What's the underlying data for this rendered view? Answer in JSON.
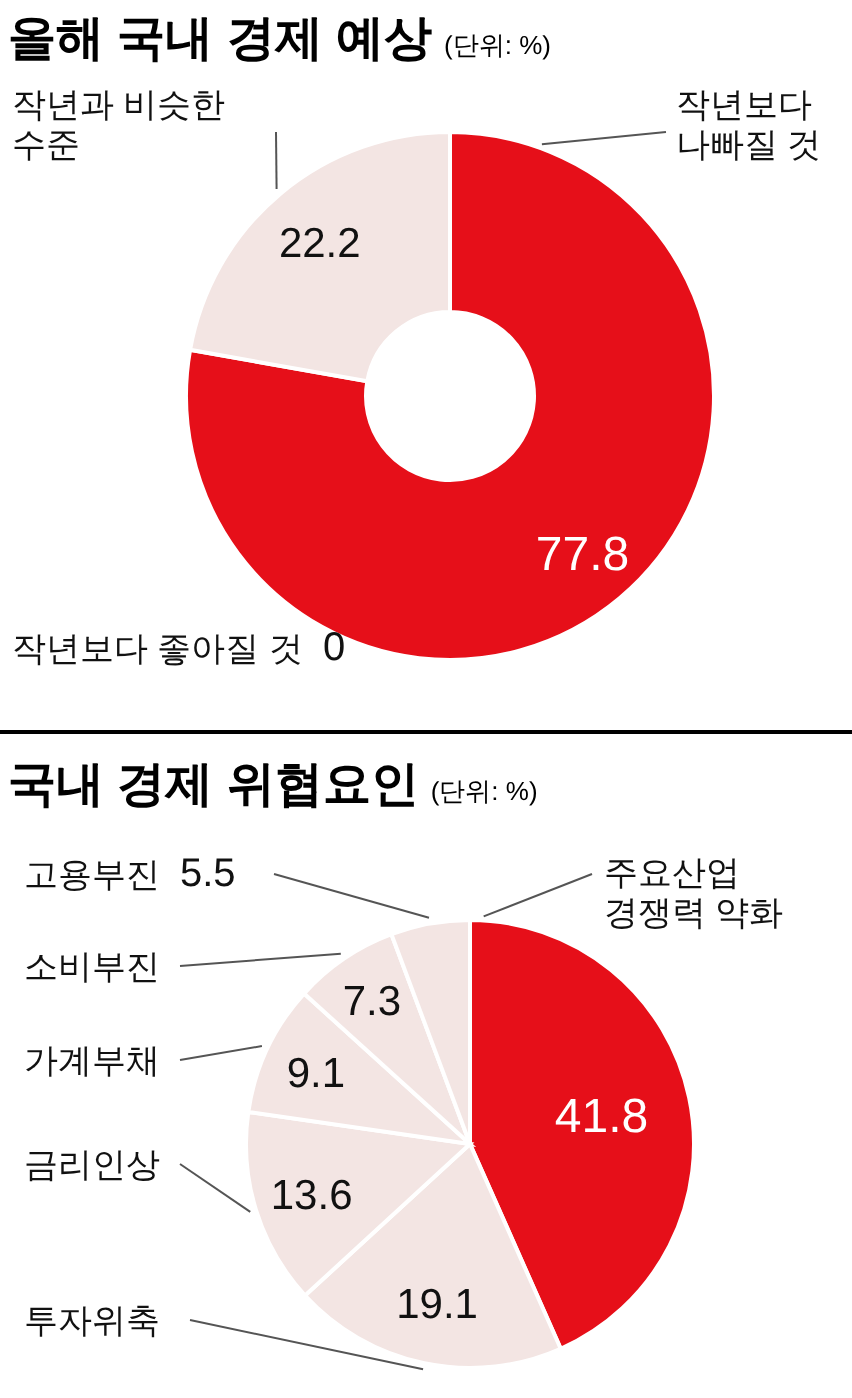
{
  "chart_data": [
    {
      "type": "donut",
      "title": "올해 국내 경제 예상",
      "subtitle": "(단위: %)",
      "categories": [
        "작년보다\n나빠질 것",
        "작년과 비슷한\n수준",
        "작년보다 좋아질 것"
      ],
      "values": [
        77.8,
        22.2,
        0
      ],
      "colors": [
        "#e60f19",
        "#f3e5e3",
        "#f3e5e3"
      ],
      "value_labels": [
        "77.8",
        "22.2",
        "0"
      ]
    },
    {
      "type": "pie",
      "title": "국내 경제 위협요인",
      "subtitle": "(단위: %)",
      "categories": [
        "주요산업\n경쟁력 약화",
        "투자위축",
        "금리인상",
        "가계부채",
        "소비부진",
        "고용부진"
      ],
      "values": [
        41.8,
        19.1,
        13.6,
        9.1,
        7.3,
        5.5
      ],
      "colors": [
        "#e60f19",
        "#f3e5e3",
        "#f3e5e3",
        "#f3e5e3",
        "#f3e5e3",
        "#f3e5e3"
      ],
      "data_labels": true
    }
  ]
}
